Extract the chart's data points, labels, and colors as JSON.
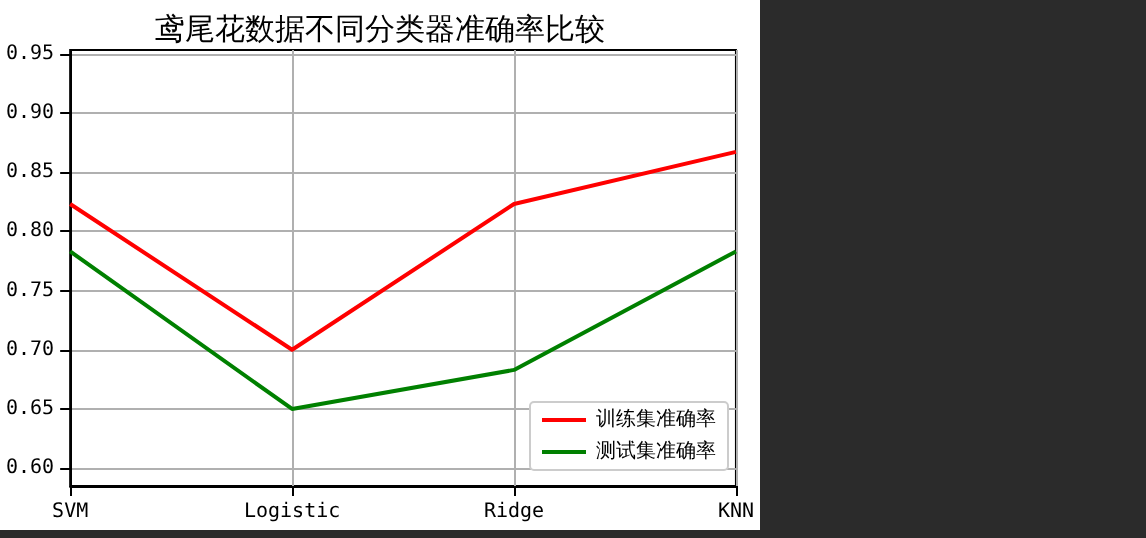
{
  "chart_data": {
    "type": "line",
    "title": "鸢尾花数据不同分类器准确率比较",
    "categories": [
      "SVM",
      "Logistic",
      "Ridge",
      "KNN"
    ],
    "series": [
      {
        "name": "训练集准确率",
        "color": "#ff0000",
        "values": [
          0.823,
          0.7,
          0.823,
          0.867
        ]
      },
      {
        "name": "测试集准确率",
        "color": "#008000",
        "values": [
          0.783,
          0.65,
          0.683,
          0.783
        ]
      }
    ],
    "ylim": [
      0.585,
      0.953
    ],
    "yticks": [
      {
        "value": 0.6,
        "label": "0.60"
      },
      0.65,
      {
        "value": 0.7,
        "label": "0.70"
      },
      0.75,
      {
        "value": 0.8,
        "label": "0.80"
      },
      0.85,
      {
        "value": 0.9,
        "label": "0.90"
      },
      0.95
    ],
    "grid": true,
    "legend": "bottom right",
    "marker": "none",
    "line_style": "solid"
  }
}
